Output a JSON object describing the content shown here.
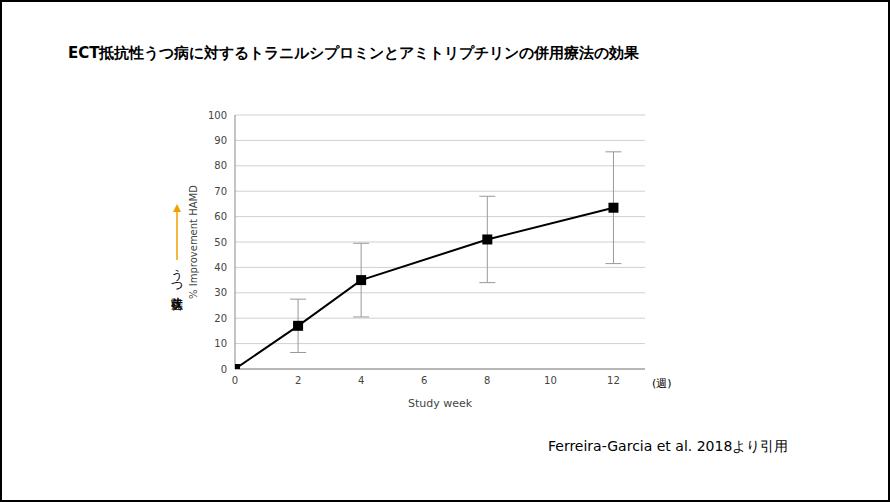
{
  "chart_data": {
    "type": "line",
    "title": "ECT抵抗性うつ病に対するトラニルシプロミンとアミトリプチリンの併用療法の効果",
    "x": [
      0,
      2,
      4,
      8,
      12
    ],
    "values": [
      0,
      17,
      35,
      51,
      63.5
    ],
    "error": [
      0,
      10.5,
      14.5,
      17,
      22
    ],
    "color": "#000000",
    "marker": "square",
    "xlabel": "Study week",
    "ylabel": "% Improvement HAMD",
    "x_unit_label": "(週)",
    "annotation": "うつ症状改善",
    "source": "Ferreira-Garcia et al. 2018より引用",
    "xlim": [
      0,
      13
    ],
    "xticks": [
      0,
      2,
      4,
      6,
      8,
      10,
      12
    ],
    "ylim": [
      0,
      100
    ],
    "yticks": [
      0,
      10,
      20,
      30,
      40,
      50,
      60,
      70,
      80,
      90,
      100
    ],
    "grid": true
  }
}
